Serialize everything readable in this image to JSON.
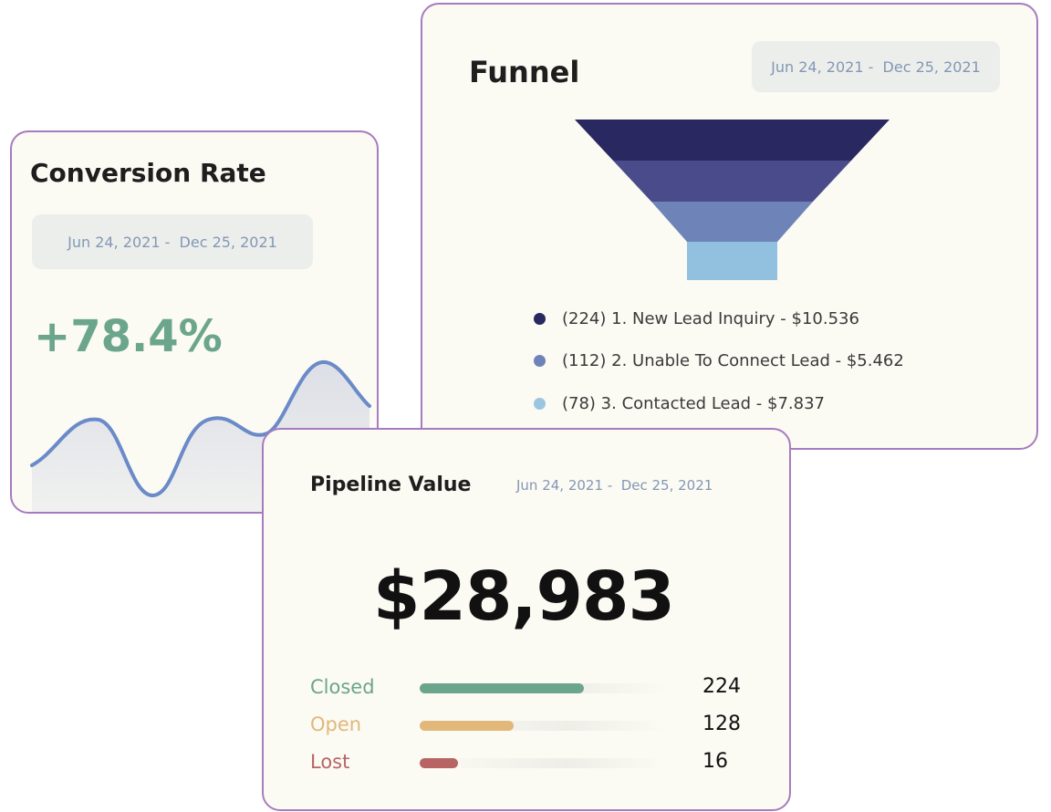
{
  "conversion": {
    "title": "Conversion Rate",
    "date_range": "Jun 24, 2021 -  Dec 25, 2021",
    "value": "+78.4%",
    "accent_color": "#6aa58c",
    "line_color": "#6a8ac8"
  },
  "funnel": {
    "title": "Funnel",
    "date_range": "Jun 24, 2021 -  Dec 25, 2021",
    "stages": [
      {
        "label": "(224) 1. New Lead Inquiry - $10.536",
        "color": "#2a2860"
      },
      {
        "label": "(112) 2. Unable To Connect Lead - $5.462",
        "color": "#6e84b8"
      },
      {
        "label": "(78) 3. Contacted Lead - $7.837",
        "color": "#9cc5e0"
      }
    ],
    "bands": [
      "#2a2860",
      "#4a4b8a",
      "#6e84b8",
      "#92c0df"
    ]
  },
  "pipeline": {
    "title": "Pipeline Value",
    "date_range": "Jun 24, 2021 -  Dec 25, 2021",
    "amount": "$28,983",
    "rows": [
      {
        "label": "Closed",
        "count": "224",
        "value": 224,
        "color": "#6aa58c"
      },
      {
        "label": "Open",
        "count": "128",
        "value": 128,
        "color": "#e1b87a"
      },
      {
        "label": "Lost",
        "count": "16",
        "value": 16,
        "color": "#b86464"
      }
    ]
  }
}
